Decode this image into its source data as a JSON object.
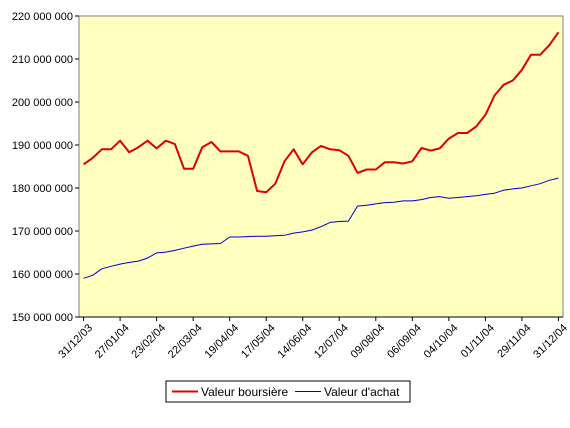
{
  "chart_data": {
    "type": "line",
    "title": "",
    "xlabel": "",
    "ylabel": "",
    "ylim": [
      150000000,
      220000000
    ],
    "y_ticks": [
      150000000,
      160000000,
      170000000,
      180000000,
      190000000,
      200000000,
      210000000,
      220000000
    ],
    "y_tick_labels": [
      "150 000 000",
      "160 000 000",
      "170 000 000",
      "180 000 000",
      "190 000 000",
      "200 000 000",
      "210 000 000",
      "220 000 000"
    ],
    "x_tick_labels": [
      "31/12/03",
      "27/01/04",
      "23/02/04",
      "22/03/04",
      "19/04/04",
      "17/05/04",
      "14/06/04",
      "12/07/04",
      "09/08/04",
      "06/09/04",
      "04/10/04",
      "01/11/04",
      "29/11/04",
      "31/12/04"
    ],
    "x_tick_positions": [
      0,
      4,
      8,
      12,
      16,
      20,
      24,
      28,
      32,
      36,
      40,
      44,
      48,
      52
    ],
    "x_count": 53,
    "grid": false,
    "legend_position": "bottom",
    "series": [
      {
        "name": "Valeur boursière",
        "color": "#e00000",
        "values": [
          185.5,
          187.0,
          189.0,
          189.0,
          191.0,
          188.3,
          189.5,
          191.0,
          189.2,
          191.0,
          190.2,
          184.5,
          184.5,
          189.5,
          190.7,
          188.5,
          188.5,
          188.5,
          187.5,
          179.3,
          179.0,
          181.0,
          186.2,
          189.0,
          185.5,
          188.3,
          189.8,
          189.0,
          188.8,
          187.5,
          183.5,
          184.3,
          184.3,
          186.0,
          186.0,
          185.7,
          186.2,
          189.3,
          188.7,
          189.2,
          191.5,
          192.8,
          192.8,
          194.3,
          197.0,
          201.5,
          204.0,
          205.0,
          207.5,
          211.0,
          211.0,
          213.2,
          216.2
        ]
      },
      {
        "name": "Valeur d'achat",
        "color": "#0000cc",
        "values": [
          159.0,
          159.7,
          161.2,
          161.8,
          162.3,
          162.7,
          163.0,
          163.7,
          164.9,
          165.1,
          165.5,
          166.0,
          166.5,
          166.9,
          167.0,
          167.1,
          168.6,
          168.6,
          168.7,
          168.8,
          168.8,
          168.9,
          169.0,
          169.5,
          169.8,
          170.2,
          171.0,
          172.0,
          172.2,
          172.3,
          175.8,
          176.0,
          176.3,
          176.6,
          176.7,
          177.0,
          177.0,
          177.3,
          177.8,
          178.0,
          177.6,
          177.8,
          178.0,
          178.2,
          178.5,
          178.8,
          179.5,
          179.8,
          180.0,
          180.5,
          181.0,
          181.8,
          182.3
        ]
      }
    ]
  }
}
